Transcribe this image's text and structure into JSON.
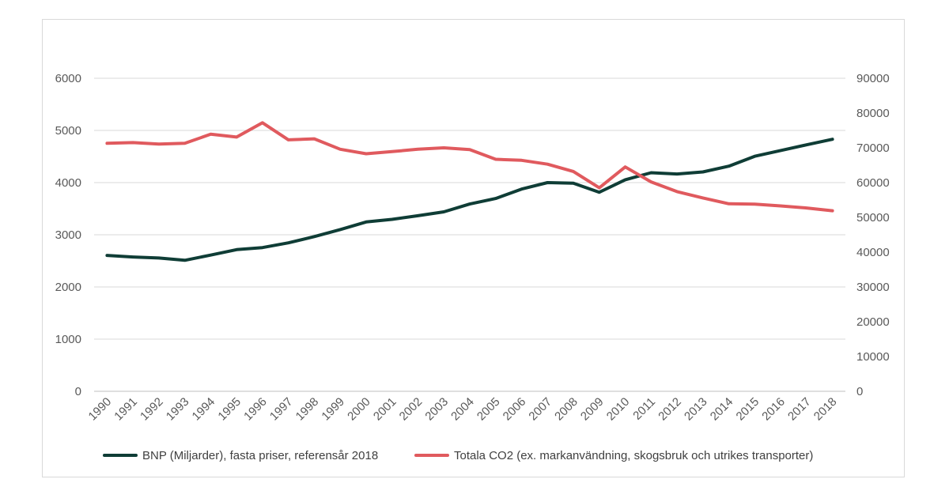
{
  "chart_data": {
    "type": "line",
    "categories": [
      "1990",
      "1991",
      "1992",
      "1993",
      "1994",
      "1995",
      "1996",
      "1997",
      "1998",
      "1999",
      "2000",
      "2001",
      "2002",
      "2003",
      "2004",
      "2005",
      "2006",
      "2007",
      "2008",
      "2009",
      "2010",
      "2011",
      "2012",
      "2013",
      "2014",
      "2015",
      "2016",
      "2017",
      "2018"
    ],
    "series": [
      {
        "name": "BNP (Miljarder), fasta priser, referensår 2018",
        "axis": "left",
        "color": "#0f3d36",
        "values": [
          2605,
          2575,
          2555,
          2510,
          2610,
          2715,
          2755,
          2845,
          2965,
          3100,
          3245,
          3295,
          3365,
          3440,
          3590,
          3695,
          3875,
          4000,
          3990,
          3815,
          4055,
          4190,
          4165,
          4205,
          4315,
          4505,
          4615,
          4725,
          4830
        ]
      },
      {
        "name": "Totala CO2 (ex. markanvändning, skogsbruk och utrikes transporter)",
        "axis": "right",
        "color": "#e05a5e",
        "values": [
          71300,
          71500,
          71100,
          71300,
          73900,
          73100,
          77200,
          72300,
          72600,
          69600,
          68300,
          68900,
          69600,
          70000,
          69500,
          66700,
          66400,
          65300,
          63200,
          58500,
          64500,
          60200,
          57400,
          55600,
          53900,
          53800,
          53300,
          52700,
          51900
        ]
      }
    ],
    "y_left": {
      "min": 0,
      "max": 6000,
      "ticks": [
        "0",
        "1000",
        "2000",
        "3000",
        "4000",
        "5000",
        "6000"
      ]
    },
    "y_right": {
      "min": 0,
      "max": 90000,
      "ticks": [
        "0",
        "10000",
        "20000",
        "30000",
        "40000",
        "50000",
        "60000",
        "70000",
        "80000",
        "90000"
      ]
    },
    "title": "",
    "xlabel": "",
    "ylabel": "",
    "grid": true,
    "legend_position": "bottom"
  }
}
